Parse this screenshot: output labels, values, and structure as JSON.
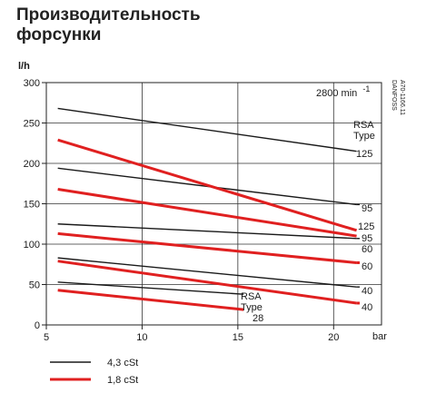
{
  "title_line1": "Производительность",
  "title_line2": "форсунки",
  "chart_data": {
    "type": "line",
    "ylabel": "l/h",
    "xlabel": "bar",
    "xlim": [
      5,
      22.5
    ],
    "ylim": [
      0,
      300
    ],
    "x_ticks": [
      5,
      10,
      15,
      20
    ],
    "y_ticks": [
      0,
      50,
      100,
      150,
      200,
      250,
      300
    ],
    "grid": true,
    "speed_label": "2800 min",
    "speed_exponent": "-1",
    "side_code_1": "DANFOSS",
    "side_code_2": "A70-1166.11",
    "rsa_type_word": "RSA",
    "type_word": "Type",
    "rsa_top_type": "125",
    "rsa_bottom_type": "28",
    "legend_placement": "bottom-left",
    "series": [
      {
        "name": "4,3 cSt",
        "color": "#1a1a1a",
        "lines": [
          {
            "label": "125",
            "points": [
              [
                5.6,
                268
              ],
              [
                21.2,
                215
              ]
            ]
          },
          {
            "label": "95",
            "points": [
              [
                5.6,
                194
              ],
              [
                21.2,
                149
              ]
            ]
          },
          {
            "label": "60",
            "points": [
              [
                5.6,
                125
              ],
              [
                21.2,
                107
              ]
            ]
          },
          {
            "label": "40",
            "points": [
              [
                5.6,
                83
              ],
              [
                21.2,
                47
              ]
            ]
          },
          {
            "label": "28",
            "points": [
              [
                5.6,
                53
              ],
              [
                15.3,
                38
              ]
            ]
          }
        ]
      },
      {
        "name": "1,8 cSt",
        "color": "#e02020",
        "lines": [
          {
            "label": "125",
            "points": [
              [
                5.6,
                229
              ],
              [
                21.2,
                117
              ]
            ]
          },
          {
            "label": "95",
            "points": [
              [
                5.6,
                168
              ],
              [
                21.2,
                110
              ]
            ]
          },
          {
            "label": "60",
            "points": [
              [
                5.6,
                113
              ],
              [
                21.2,
                77
              ]
            ]
          },
          {
            "label": "40",
            "points": [
              [
                5.6,
                79
              ],
              [
                21.2,
                27
              ]
            ]
          },
          {
            "label": "28",
            "points": [
              [
                5.6,
                43
              ],
              [
                15.3,
                19
              ]
            ]
          }
        ]
      }
    ]
  }
}
